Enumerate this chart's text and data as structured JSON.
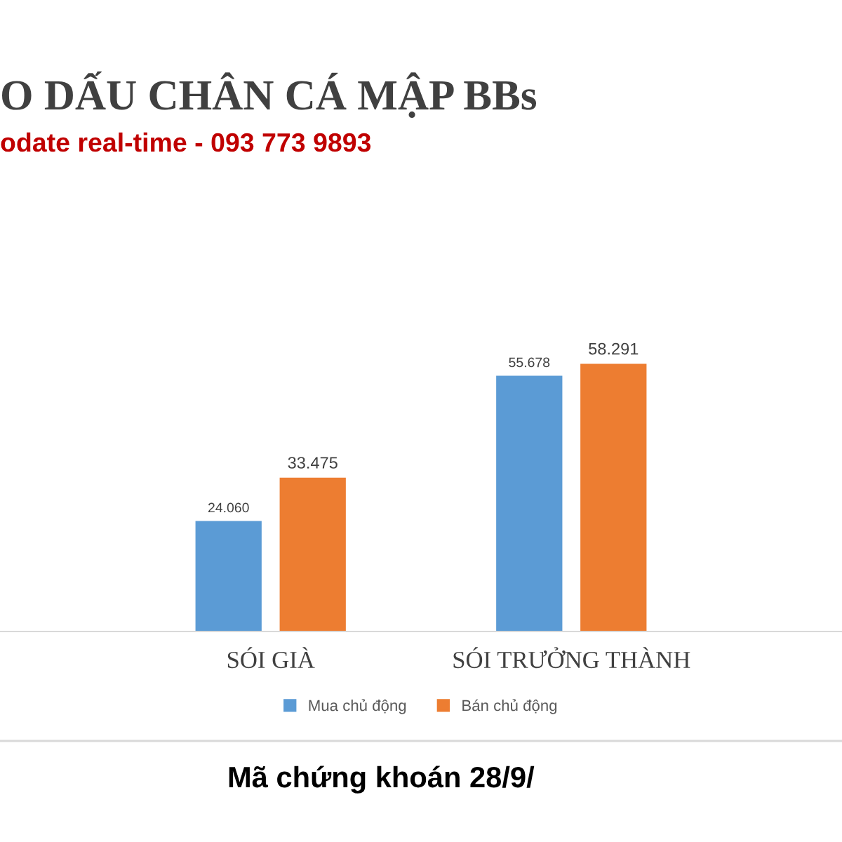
{
  "chart_data": {
    "type": "bar",
    "title": "O DẤU CHÂN CÁ MẬP BBs",
    "subtitle": "odate real-time - 093 773 9893",
    "categories": [
      "SÓI GIÀ",
      "SÓI TRƯỞNG THÀNH"
    ],
    "series": [
      {
        "name": "Mua chủ động",
        "color": "#5b9bd5",
        "values": [
          24.06,
          55.678
        ],
        "value_labels": [
          "24.060",
          "55.678"
        ]
      },
      {
        "name": "Bán chủ động",
        "color": "#ed7d31",
        "values": [
          33.475,
          58.291
        ],
        "value_labels": [
          "33.475",
          "58.291"
        ]
      }
    ],
    "legend": "bottom",
    "grid": false,
    "annotations": [
      "Mã chứng khoán 28/9/"
    ]
  }
}
